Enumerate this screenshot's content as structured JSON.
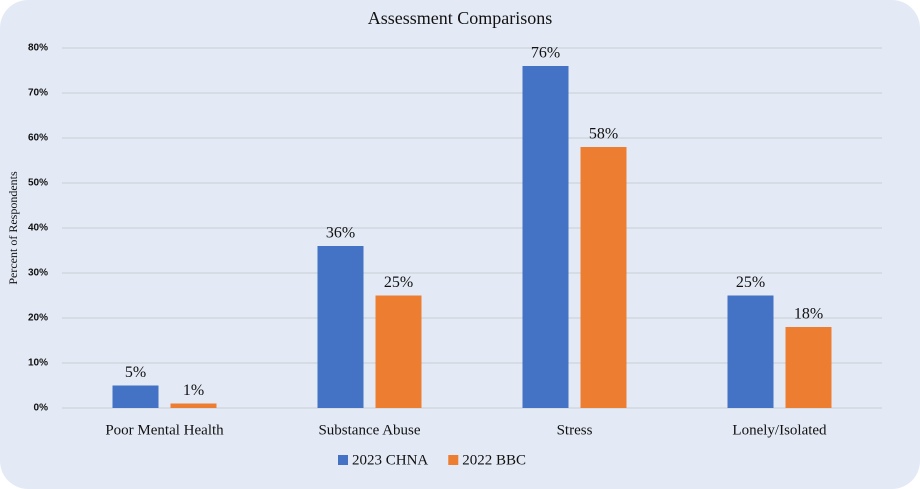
{
  "chart_data": {
    "type": "bar",
    "title": "Assessment Comparisons",
    "y_label": "Percent of Respondents",
    "categories": [
      "Poor Mental Health",
      "Substance Abuse",
      "Stress",
      "Lonely/Isolated"
    ],
    "series": [
      {
        "name": "2023 CHNA",
        "color": "#4472c4",
        "values": [
          5,
          36,
          76,
          25
        ],
        "value_labels": [
          "5%",
          "36%",
          "76%",
          "25%"
        ]
      },
      {
        "name": "2022 BBC",
        "color": "#ed7d31",
        "values": [
          1,
          25,
          58,
          18
        ],
        "value_labels": [
          "1%",
          "25%",
          "58%",
          "18%"
        ]
      }
    ],
    "ylim": [
      0,
      80
    ],
    "yticks": [
      {
        "value": 0,
        "label": "0%"
      },
      {
        "value": 10,
        "label": "10%"
      },
      {
        "value": 20,
        "label": "20%"
      },
      {
        "value": 30,
        "label": "30%"
      },
      {
        "value": 40,
        "label": "40%"
      },
      {
        "value": 50,
        "label": "50%"
      },
      {
        "value": 60,
        "label": "60%"
      },
      {
        "value": 70,
        "label": "70%"
      },
      {
        "value": 80,
        "label": "80%"
      }
    ],
    "grid": true,
    "legend": "bottom"
  }
}
